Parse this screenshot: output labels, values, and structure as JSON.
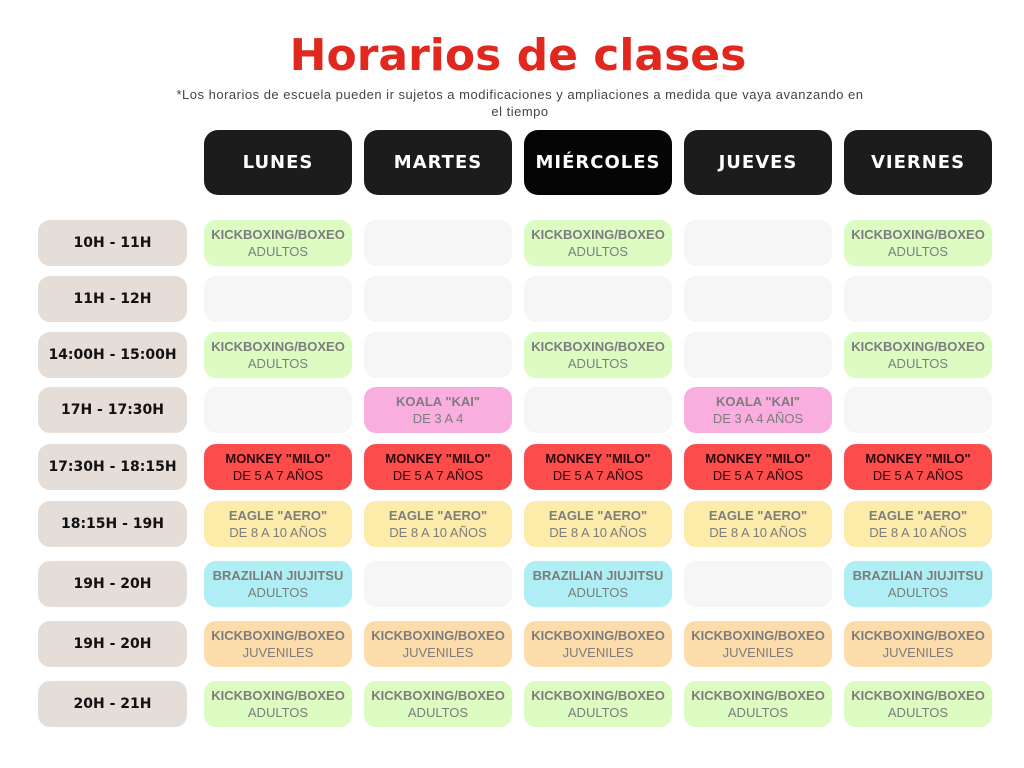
{
  "title": "Horarios de clases",
  "subtitle": "*Los horarios de escuela pueden ir sujetos a modificaciones y ampliaciones a medida que vaya avanzando en el tiempo",
  "days": [
    "LUNES",
    "MARTES",
    "MIÉRCOLES",
    "JUEVES",
    "VIERNES"
  ],
  "colors": {
    "green": "#dcfcc2",
    "pink": "#f9aedf",
    "red": "#fc4c4c",
    "yellow": "#fdebaa",
    "blue": "#aeeef4",
    "orange": "#fddcab",
    "empty": "#f6f6f6"
  },
  "rows": [
    {
      "time": "10H - 11H",
      "cells": [
        {
          "c": "green",
          "name": "KICKBOXING/BOXEO",
          "sub": "ADULTOS"
        },
        null,
        {
          "c": "green",
          "name": "KICKBOXING/BOXEO",
          "sub": "ADULTOS"
        },
        null,
        {
          "c": "green",
          "name": "KICKBOXING/BOXEO",
          "sub": "ADULTOS"
        }
      ]
    },
    {
      "time": "11H - 12H",
      "cells": [
        null,
        null,
        null,
        null,
        null
      ]
    },
    {
      "time": "14:00H - 15:00H",
      "cells": [
        {
          "c": "green",
          "name": "KICKBOXING/BOXEO",
          "sub": "ADULTOS"
        },
        null,
        {
          "c": "green",
          "name": "KICKBOXING/BOXEO",
          "sub": "ADULTOS"
        },
        null,
        {
          "c": "green",
          "name": "KICKBOXING/BOXEO",
          "sub": "ADULTOS"
        }
      ]
    },
    {
      "time": "17H - 17:30H",
      "cells": [
        null,
        {
          "c": "pink",
          "name": "KOALA \"KAI\"",
          "sub": "DE 3 A 4"
        },
        null,
        {
          "c": "pink",
          "name": "KOALA \"KAI\"",
          "sub": "DE 3 A 4 AÑOS"
        },
        null
      ]
    },
    {
      "time": "17:30H - 18:15H",
      "cells": [
        {
          "c": "red",
          "name": "MONKEY \"MILO\"",
          "sub": "DE 5 A 7 AÑOS"
        },
        {
          "c": "red",
          "name": "MONKEY \"MILO\"",
          "sub": "DE 5 A 7 AÑOS"
        },
        {
          "c": "red",
          "name": "MONKEY \"MILO\"",
          "sub": "DE 5 A 7 AÑOS"
        },
        {
          "c": "red",
          "name": "MONKEY \"MILO\"",
          "sub": "DE 5 A 7 AÑOS"
        },
        {
          "c": "red",
          "name": "MONKEY \"MILO\"",
          "sub": "DE 5 A 7 AÑOS"
        }
      ]
    },
    {
      "time": "18:15H - 19H",
      "cells": [
        {
          "c": "yellow",
          "name": "EAGLE \"AERO\"",
          "sub": "DE 8 A 10 AÑOS"
        },
        {
          "c": "yellow",
          "name": "EAGLE \"AERO\"",
          "sub": "DE 8 A 10 AÑOS"
        },
        {
          "c": "yellow",
          "name": "EAGLE \"AERO\"",
          "sub": "DE 8 A 10 AÑOS"
        },
        {
          "c": "yellow",
          "name": "EAGLE \"AERO\"",
          "sub": "DE 8 A 10 AÑOS"
        },
        {
          "c": "yellow",
          "name": "EAGLE \"AERO\"",
          "sub": "DE 8 A 10 AÑOS"
        }
      ]
    },
    {
      "time": "19H - 20H",
      "cells": [
        {
          "c": "blue",
          "name": "BRAZILIAN JIUJITSU",
          "sub": "ADULTOS"
        },
        null,
        {
          "c": "blue",
          "name": "BRAZILIAN JIUJITSU",
          "sub": "ADULTOS"
        },
        null,
        {
          "c": "blue",
          "name": "BRAZILIAN JIUJITSU",
          "sub": "ADULTOS"
        }
      ]
    },
    {
      "time": "19H - 20H",
      "cells": [
        {
          "c": "orange",
          "name": "KICKBOXING/BOXEO",
          "sub": "JUVENILES"
        },
        {
          "c": "orange",
          "name": "KICKBOXING/BOXEO",
          "sub": "JUVENILES"
        },
        {
          "c": "orange",
          "name": "KICKBOXING/BOXEO",
          "sub": "JUVENILES"
        },
        {
          "c": "orange",
          "name": "KICKBOXING/BOXEO",
          "sub": "JUVENILES"
        },
        {
          "c": "orange",
          "name": "KICKBOXING/BOXEO",
          "sub": "JUVENILES"
        }
      ]
    },
    {
      "time": "20H - 21H",
      "cells": [
        {
          "c": "green",
          "name": "KICKBOXING/BOXEO",
          "sub": "ADULTOS"
        },
        {
          "c": "green",
          "name": "KICKBOXING/BOXEO",
          "sub": "ADULTOS"
        },
        {
          "c": "green",
          "name": "KICKBOXING/BOXEO",
          "sub": "ADULTOS"
        },
        {
          "c": "green",
          "name": "KICKBOXING/BOXEO",
          "sub": "ADULTOS"
        },
        {
          "c": "green",
          "name": "KICKBOXING/BOXEO",
          "sub": "ADULTOS"
        }
      ]
    }
  ]
}
